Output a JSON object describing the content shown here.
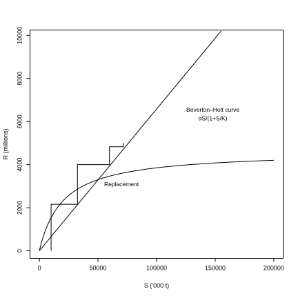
{
  "chart_data": {
    "type": "line",
    "xlabel": "S ('000 t)",
    "ylabel": "R (millions)",
    "xlim": [
      -8000,
      208000
    ],
    "ylim": [
      -350,
      10250
    ],
    "xticks": [
      0,
      50000,
      100000,
      150000,
      200000
    ],
    "yticks": [
      0,
      2000,
      4000,
      6000,
      8000,
      10000
    ],
    "xtick_labels": [
      "0",
      "50000",
      "100000",
      "150000",
      "200000"
    ],
    "ytick_labels": [
      "0",
      "2000",
      "4000",
      "6000",
      "8000",
      "10000"
    ],
    "series": [
      {
        "type": "curve",
        "alpha": 0.2311,
        "K": 20000,
        "x": [
          0,
          2000,
          5000,
          10000,
          20000,
          30000,
          40000,
          50000,
          60000,
          75000,
          90000,
          100000,
          120000,
          140000,
          160000,
          180000,
          200000
        ],
        "y": [
          0,
          420,
          925,
          1540,
          2310,
          2775,
          3080,
          3300,
          3465,
          3650,
          3780,
          3850,
          3960,
          4045,
          4110,
          4160,
          4200
        ]
      },
      {
        "type": "line",
        "x": [
          0,
          155000
        ],
        "y": [
          0,
          10200
        ]
      },
      {
        "type": "staircase",
        "x": [
          10000,
          10000,
          32500,
          32500,
          59800,
          59800,
          71700,
          71700
        ],
        "y": [
          0,
          2160,
          2160,
          4000,
          4000,
          4830,
          4830,
          5010
        ]
      }
    ],
    "annotations": [
      {
        "text": "Beverton–Holt curve",
        "x": 148000,
        "y": 6450
      },
      {
        "text": "αS/(1+S/K)",
        "x": 148000,
        "y": 6050
      },
      {
        "text": "Replacement",
        "x": 70000,
        "y": 3000
      }
    ],
    "grid": false,
    "legend": "none"
  }
}
